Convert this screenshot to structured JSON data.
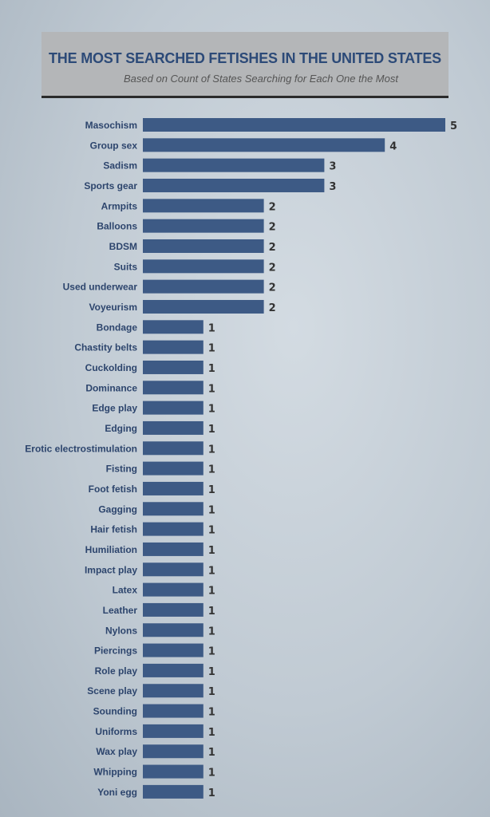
{
  "chart_data": {
    "type": "bar",
    "orientation": "horizontal",
    "title": "THE MOST SEARCHED FETISHES IN THE UNITED STATES",
    "subtitle": "Based on Count of States Searching for Each One the Most",
    "categories": [
      "Masochism",
      "Group sex",
      "Sadism",
      "Sports gear",
      "Armpits",
      "Balloons",
      "BDSM",
      "Suits",
      "Used underwear",
      "Voyeurism",
      "Bondage",
      "Chastity belts",
      "Cuckolding",
      "Dominance",
      "Edge play",
      "Edging",
      "Erotic electrostimulation",
      "Fisting",
      "Foot fetish",
      "Gagging",
      "Hair fetish",
      "Humiliation",
      "Impact play",
      "Latex",
      "Leather",
      "Nylons",
      "Piercings",
      "Role play",
      "Scene play",
      "Sounding",
      "Uniforms",
      "Wax play",
      "Whipping",
      "Yoni egg"
    ],
    "values": [
      5,
      4,
      3,
      3,
      2,
      2,
      2,
      2,
      2,
      2,
      1,
      1,
      1,
      1,
      1,
      1,
      1,
      1,
      1,
      1,
      1,
      1,
      1,
      1,
      1,
      1,
      1,
      1,
      1,
      1,
      1,
      1,
      1,
      1
    ],
    "xlim": [
      0,
      5
    ],
    "grid": false,
    "data_labels": true,
    "colors": {
      "bar": "#3d5a85",
      "label": "#2d456d",
      "value": "#333333",
      "title": "#2c4a78"
    }
  }
}
